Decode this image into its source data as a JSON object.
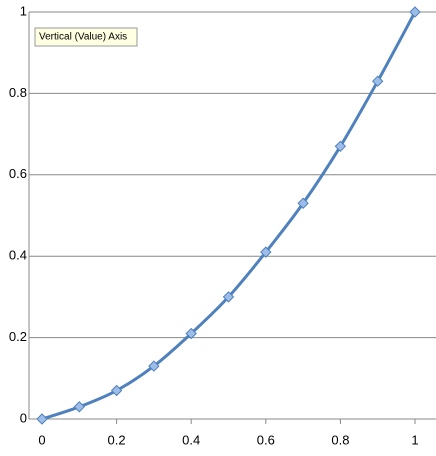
{
  "chart_data": {
    "type": "scatter",
    "tooltip": "Vertical (Value) Axis",
    "x": [
      0,
      0.1,
      0.2,
      0.3,
      0.4,
      0.5,
      0.6,
      0.7,
      0.8,
      0.9,
      1
    ],
    "series": [
      {
        "color": "#4f81bd",
        "values": [
          0,
          0.03,
          0.07,
          0.13,
          0.21,
          0.3,
          0.41,
          0.53,
          0.67,
          0.83,
          1
        ]
      }
    ],
    "xlim": [
      0,
      1
    ],
    "ylim": [
      0,
      1
    ],
    "xticks": [
      0,
      0.2,
      0.4,
      0.6,
      0.8,
      1
    ],
    "yticks": [
      0,
      0.2,
      0.4,
      0.6,
      0.8,
      1
    ],
    "grid": true,
    "smooth": true
  }
}
